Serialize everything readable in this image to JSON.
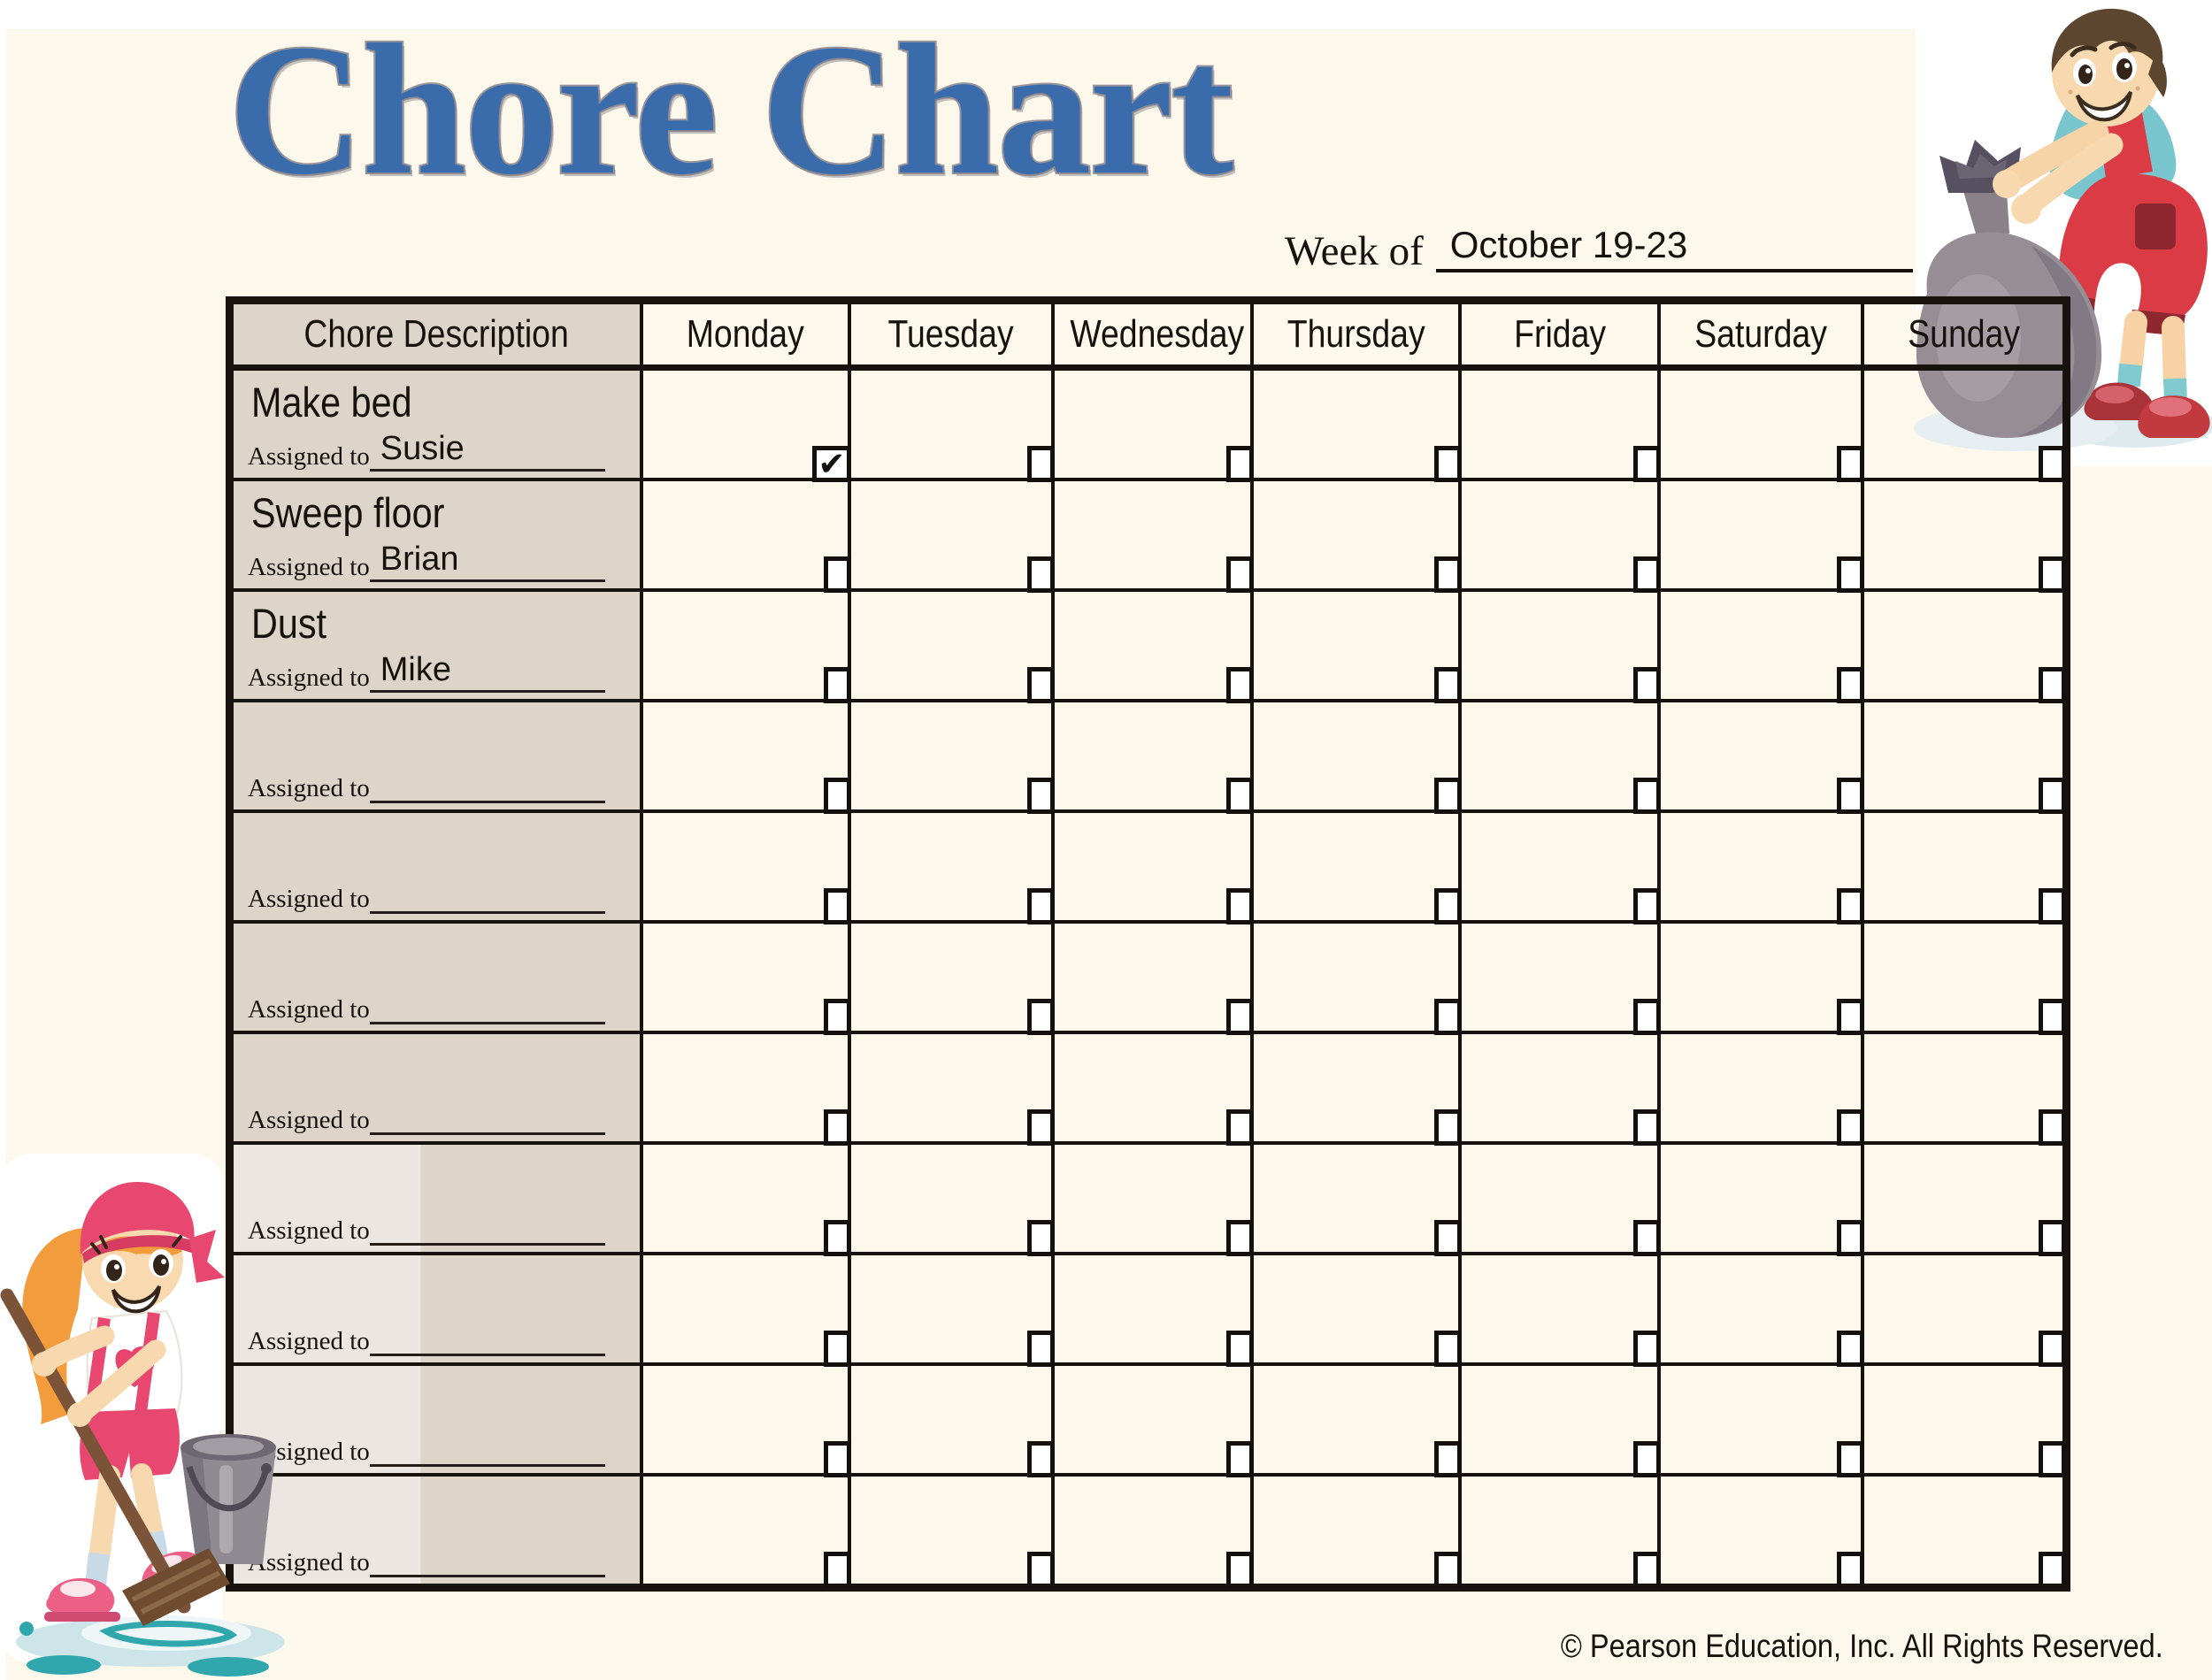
{
  "page": {
    "title": "Chore Chart"
  },
  "week_of": {
    "label": "Week of",
    "value": "October 19-23"
  },
  "table": {
    "headers": [
      "Chore Description",
      "Monday",
      "Tuesday",
      "Wednesday",
      "Thursday",
      "Friday",
      "Saturday",
      "Sunday"
    ],
    "assigned_to_label": "Assigned to",
    "rows": [
      {
        "chore": "Make bed",
        "assignee": "Susie",
        "checks": [
          true,
          false,
          false,
          false,
          false,
          false,
          false
        ]
      },
      {
        "chore": "Sweep floor",
        "assignee": "Brian",
        "checks": [
          false,
          false,
          false,
          false,
          false,
          false,
          false
        ]
      },
      {
        "chore": "Dust",
        "assignee": "Mike",
        "checks": [
          false,
          false,
          false,
          false,
          false,
          false,
          false
        ]
      },
      {
        "chore": "",
        "assignee": "",
        "checks": [
          false,
          false,
          false,
          false,
          false,
          false,
          false
        ]
      },
      {
        "chore": "",
        "assignee": "",
        "checks": [
          false,
          false,
          false,
          false,
          false,
          false,
          false
        ]
      },
      {
        "chore": "",
        "assignee": "",
        "checks": [
          false,
          false,
          false,
          false,
          false,
          false,
          false
        ]
      },
      {
        "chore": "",
        "assignee": "",
        "checks": [
          false,
          false,
          false,
          false,
          false,
          false,
          false
        ]
      },
      {
        "chore": "",
        "assignee": "",
        "checks": [
          false,
          false,
          false,
          false,
          false,
          false,
          false
        ]
      },
      {
        "chore": "",
        "assignee": "",
        "checks": [
          false,
          false,
          false,
          false,
          false,
          false,
          false
        ]
      },
      {
        "chore": "",
        "assignee": "",
        "checks": [
          false,
          false,
          false,
          false,
          false,
          false,
          false
        ]
      },
      {
        "chore": "",
        "assignee": "",
        "checks": [
          false,
          false,
          false,
          false,
          false,
          false,
          false
        ]
      }
    ]
  },
  "footer": {
    "copyright": "© Pearson Education, Inc. All Rights Reserved."
  },
  "icons": {
    "checkmark": "✔",
    "boy_clipart": "boy-putting-trash-in-bag",
    "girl_clipart": "girl-mopping-floor"
  },
  "colors": {
    "title_blue": "#3a6bab",
    "title_outline_gray": "#98949b",
    "page_cream": "#fcf8ec",
    "table_beige": "#ddd5ca",
    "border_black": "#17120e",
    "bag_gray": "#968d95",
    "shirt_teal": "#79c6ce",
    "overalls_red": "#db3b44",
    "girl_pink": "#e8486f",
    "hair_orange": "#f29c3d",
    "water_teal": "#2fa7ad"
  }
}
